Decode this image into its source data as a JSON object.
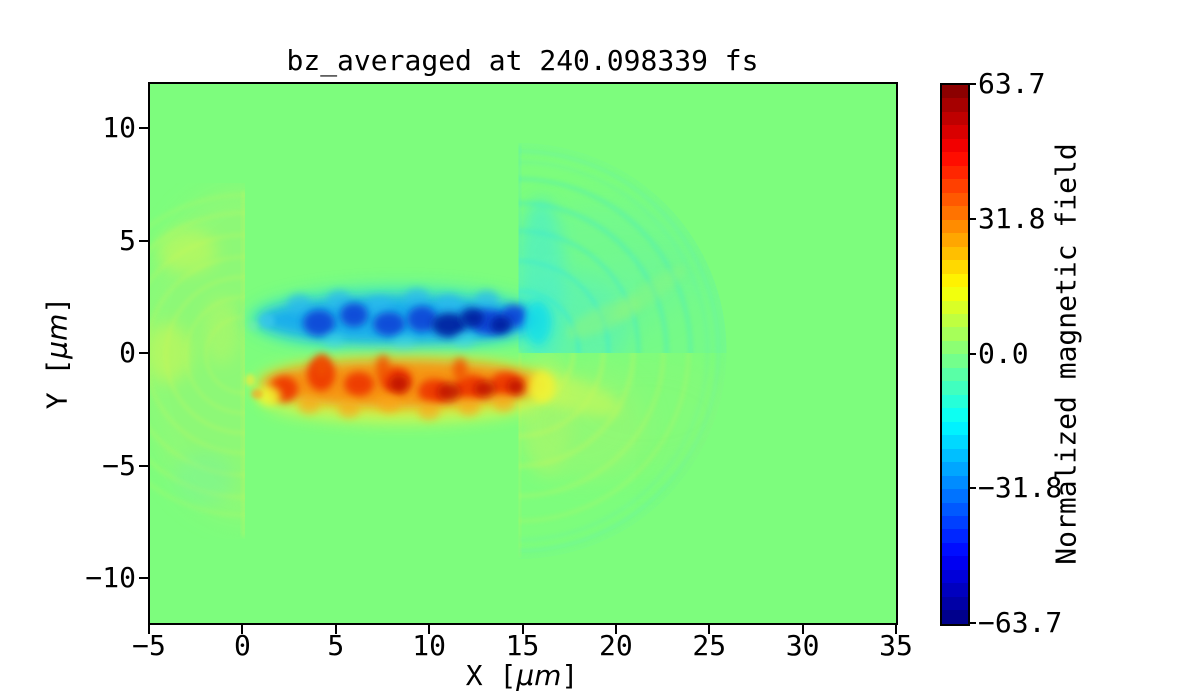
{
  "figure": {
    "title": "bz_averaged at 240.098339 fs",
    "background": "#ffffff",
    "plot_background": "#7dfd7d"
  },
  "axes": {
    "x": {
      "label_pre": "X [",
      "label_mu": "μm",
      "label_post": "]",
      "min": -5,
      "max": 35,
      "ticks": [
        {
          "v": -5,
          "label": "−5"
        },
        {
          "v": 0,
          "label": "0"
        },
        {
          "v": 5,
          "label": "5"
        },
        {
          "v": 10,
          "label": "10"
        },
        {
          "v": 15,
          "label": "15"
        },
        {
          "v": 20,
          "label": "20"
        },
        {
          "v": 25,
          "label": "25"
        },
        {
          "v": 30,
          "label": "30"
        },
        {
          "v": 35,
          "label": "35"
        }
      ]
    },
    "y": {
      "label_pre": "Y [",
      "label_mu": "μm",
      "label_post": "]",
      "min": -12,
      "max": 12,
      "ticks": [
        {
          "v": 10,
          "label": "10"
        },
        {
          "v": 5,
          "label": "5"
        },
        {
          "v": 0,
          "label": "0"
        },
        {
          "v": -5,
          "label": "−5"
        },
        {
          "v": -10,
          "label": "−10"
        }
      ]
    }
  },
  "colorbar": {
    "label": "Normalized magnetic field",
    "vmin": -63.7,
    "vmax": 63.7,
    "ticks": [
      {
        "v": 63.7,
        "label": "63.7"
      },
      {
        "v": 31.8,
        "label": "31.8"
      },
      {
        "v": 0,
        "label": "0.0"
      },
      {
        "v": -31.8,
        "label": "−31.8"
      },
      {
        "v": -63.7,
        "label": "−63.7"
      }
    ],
    "bands": [
      "#8c0000",
      "#a60000",
      "#bf0000",
      "#d90000",
      "#f20000",
      "#ff0d00",
      "#ff2600",
      "#ff4000",
      "#ff5900",
      "#ff7300",
      "#ff8c00",
      "#ffa600",
      "#ffbf00",
      "#ffd900",
      "#fff200",
      "#f2ff0d",
      "#d9ff26",
      "#bfff40",
      "#a6ff59",
      "#8cff73",
      "#73ff8c",
      "#59ffa6",
      "#40ffbf",
      "#26ffd9",
      "#0dfff2",
      "#00f2ff",
      "#00d9ff",
      "#00bfff",
      "#00a6ff",
      "#008cff",
      "#0073ff",
      "#0059ff",
      "#0040ff",
      "#0026ff",
      "#000dff",
      "#0000f2",
      "#0000d9",
      "#0000bf",
      "#0000a6",
      "#00008c"
    ]
  },
  "chart_data": {
    "type": "heatmap",
    "title": "bz_averaged at 240.098339 fs",
    "time_fs": 240.098339,
    "xlabel": "X [μm]",
    "ylabel": "Y [μm]",
    "xlim": [
      -5,
      35
    ],
    "ylim": [
      -12,
      12
    ],
    "x_ticks": [
      -5,
      0,
      5,
      10,
      15,
      20,
      25,
      30,
      35
    ],
    "y_ticks": [
      -10,
      -5,
      0,
      5,
      10
    ],
    "colormap": "jet",
    "colorbar_label": "Normalized magnetic field",
    "colorbar_ticks": [
      63.7,
      31.8,
      0.0,
      -31.8,
      -63.7
    ],
    "value_range": [
      -63.7,
      63.7
    ],
    "background_value": 0.0,
    "features": [
      {
        "name": "negative-field-band",
        "sign": "negative",
        "color": "dark blue / cyan halo",
        "x_range_um": [
          1,
          16
        ],
        "y_range_um": [
          0.3,
          2.6
        ],
        "peak_value": -63.7,
        "description": "turbulent horizontal band of strong negative Bz just above the axis"
      },
      {
        "name": "positive-field-band",
        "sign": "positive",
        "color": "red-orange / yellow halo",
        "x_range_um": [
          1,
          16.5
        ],
        "y_range_um": [
          -2.7,
          -0.1
        ],
        "peak_value": 63.7,
        "description": "turbulent horizontal band of strong positive Bz just below the axis"
      },
      {
        "name": "right-wavefront-fan",
        "center_um": [
          14.8,
          -0.1
        ],
        "radius_um": [
          0,
          11
        ],
        "description": "semicircular wavefront arcs emanating rightward from the plasma right edge; weak negative (cyan) above axis, weak positive (yellow-green) below"
      },
      {
        "name": "left-wavefront-fan",
        "center_um": [
          0,
          0
        ],
        "radius_um": [
          0,
          8
        ],
        "description": "faint yellow-green wavefront arcs emanating leftward from the plasma left edge"
      },
      {
        "name": "plasma-left-edge",
        "x_um": 0
      },
      {
        "name": "plasma-right-edge",
        "x_um": 14.8
      }
    ]
  }
}
